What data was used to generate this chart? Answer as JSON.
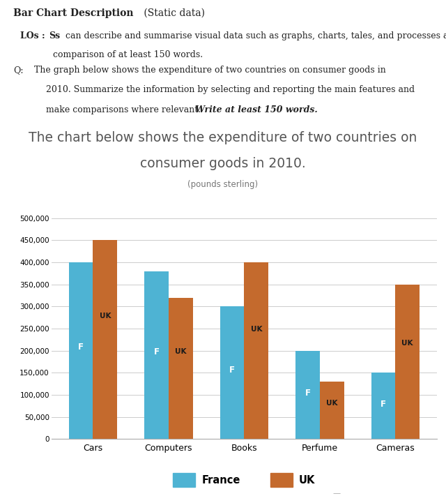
{
  "title_line1": "The chart below shows the expenditure of two countries on",
  "title_line2": "consumer goods in 2010.",
  "subtitle": "(pounds sterling)",
  "categories": [
    "Cars",
    "Computers",
    "Books",
    "Perfume",
    "Cameras"
  ],
  "france_values": [
    400000,
    380000,
    300000,
    200000,
    150000
  ],
  "uk_values": [
    450000,
    320000,
    400000,
    130000,
    350000
  ],
  "france_color": "#4EB3D3",
  "uk_color": "#C46A2D",
  "bar_label_france": "F",
  "bar_label_uk": "UK",
  "ylim": [
    0,
    500000
  ],
  "yticks": [
    0,
    50000,
    100000,
    150000,
    200000,
    250000,
    300000,
    350000,
    400000,
    450000,
    500000
  ],
  "ytick_labels": [
    "0",
    "50,000",
    "100,000",
    "150,000",
    "200,000",
    "250,000",
    "300,000",
    "350,000",
    "400,000",
    "450,000",
    "500,000"
  ],
  "background_color": "#FFFFFF",
  "bar_width": 0.32,
  "legend_france": "France",
  "legend_uk": "UK",
  "header_bold": "Bar Chart Description",
  "header_normal": " (Static data)",
  "los_label": "LOs : ",
  "los_ss": "Ss",
  "los_rest": " can describe and summarise visual data such as graphs, charts, tales, and processes and make",
  "los_line2": "comparison of at least 150 words.",
  "q_label": "Q:",
  "q_body1": " The graph below shows the expenditure of two countries on consumer goods in",
  "q_body2": "2010. Summarize the information by selecting and reporting the main features and",
  "q_body3": "make comparisons where relevant. ",
  "q_bold": "Write at least 150 words.",
  "title_color": "#555555",
  "subtitle_color": "#777777",
  "text_color": "#222222",
  "grid_color": "#CCCCCC",
  "label_f_color": "#FFFFFF",
  "label_uk_color": "#1A1A1A"
}
